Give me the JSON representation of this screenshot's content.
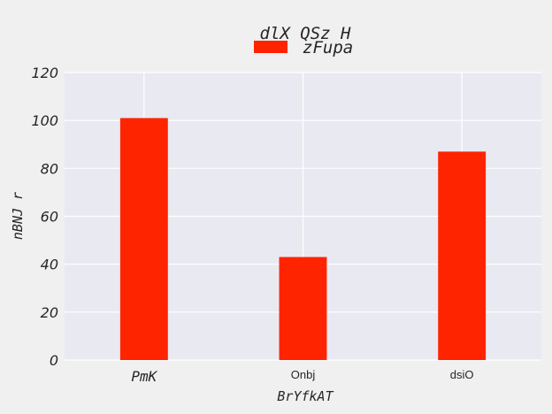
{
  "chart_data": {
    "type": "bar",
    "title": "dlX  QSz H",
    "xlabel": "BrYfkAT",
    "ylabel": "nBNJ r",
    "categories": [
      "PmK",
      "Onbj",
      "dsiO"
    ],
    "series": [
      {
        "name": "zFupa",
        "values": [
          101,
          43,
          87
        ],
        "color": "#ff2400"
      }
    ],
    "ylim": [
      0,
      120
    ],
    "yticks": [
      "0",
      "20",
      "40",
      "60",
      "80",
      "100",
      "120"
    ],
    "grid": true,
    "legend": "top-center",
    "colors": {
      "plot_background": "#e9e9f2",
      "figure_background": "#f0f0f0",
      "grid": "#ffffff"
    }
  }
}
